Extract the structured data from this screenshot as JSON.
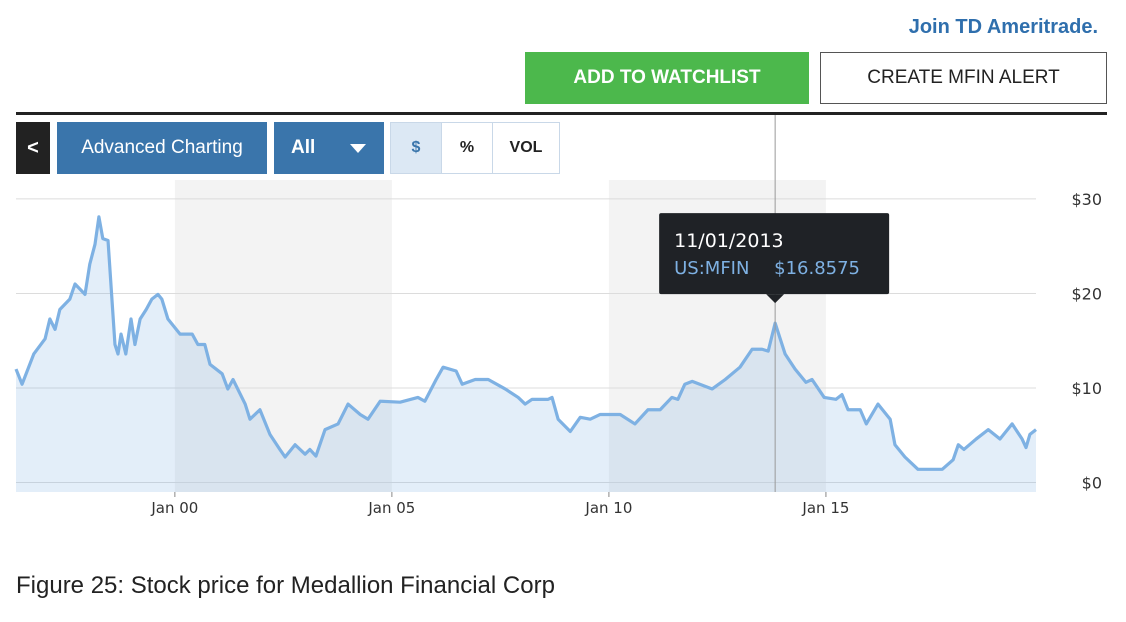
{
  "header": {
    "join_link": "Join TD Ameritrade.",
    "buttons": [
      "ADD TO WATCHLIST",
      "CREATE MFIN ALERT"
    ]
  },
  "toolbar": {
    "back": "<",
    "advanced": "Advanced Charting",
    "range": "All",
    "modes": [
      "$",
      "%",
      "VOL"
    ]
  },
  "chart_data": {
    "type": "line",
    "x": [
      1996.34,
      1996.48,
      1996.75,
      1997.01,
      1997.12,
      1997.24,
      1997.35,
      1997.58,
      1997.7,
      1997.93,
      1998.04,
      1998.16,
      1998.25,
      1998.34,
      1998.46,
      1998.55,
      1998.62,
      1998.69,
      1998.76,
      1998.87,
      1998.99,
      1999.08,
      1999.2,
      1999.34,
      1999.47,
      1999.61,
      1999.7,
      1999.84,
      2000.12,
      2000.4,
      2000.53,
      2000.69,
      2000.81,
      2001.09,
      2001.22,
      2001.34,
      2001.62,
      2001.73,
      2001.96,
      2002.19,
      2002.42,
      2002.54,
      2002.77,
      2003.0,
      2003.11,
      2003.25,
      2003.46,
      2003.76,
      2003.99,
      2004.27,
      2004.45,
      2004.73,
      2005.19,
      2005.6,
      2005.76,
      2006.02,
      2006.18,
      2006.48,
      2006.62,
      2006.92,
      2007.22,
      2007.61,
      2007.91,
      2008.07,
      2008.23,
      2008.6,
      2008.69,
      2008.83,
      2009.11,
      2009.34,
      2009.57,
      2009.8,
      2010.26,
      2010.6,
      2010.9,
      2011.18,
      2011.45,
      2011.59,
      2011.75,
      2011.92,
      2012.38,
      2012.68,
      2013.02,
      2013.3,
      2013.53,
      2013.67,
      2013.83,
      2014.06,
      2014.29,
      2014.54,
      2014.68,
      2014.96,
      2015.23,
      2015.37,
      2015.51,
      2015.79,
      2015.93,
      2016.2,
      2016.48,
      2016.59,
      2016.82,
      2017.12,
      2017.4,
      2017.68,
      2017.93,
      2018.05,
      2018.18,
      2018.46,
      2018.74,
      2019.01,
      2019.29,
      2019.52,
      2019.61,
      2019.7,
      2019.84
    ],
    "series": [
      {
        "name": "US:MFIN",
        "color": "#7eb1e3",
        "values": [
          12.0,
          10.4,
          13.6,
          15.2,
          17.3,
          16.2,
          18.3,
          19.4,
          21.0,
          19.9,
          23.1,
          25.2,
          28.1,
          25.8,
          25.6,
          19.4,
          14.6,
          13.6,
          15.7,
          13.6,
          17.3,
          14.6,
          17.3,
          18.3,
          19.4,
          19.9,
          19.4,
          17.3,
          15.7,
          15.7,
          14.6,
          14.6,
          12.5,
          11.5,
          9.9,
          10.9,
          8.3,
          6.7,
          7.7,
          5.1,
          3.5,
          2.7,
          4.0,
          3.0,
          3.5,
          2.8,
          5.6,
          6.2,
          8.3,
          7.2,
          6.7,
          8.6,
          8.5,
          9.0,
          8.6,
          10.9,
          12.2,
          11.8,
          10.4,
          10.9,
          10.9,
          9.9,
          9.0,
          8.3,
          8.8,
          8.8,
          9.0,
          6.7,
          5.4,
          6.9,
          6.7,
          7.2,
          7.2,
          6.2,
          7.7,
          7.7,
          9.0,
          8.8,
          10.4,
          10.7,
          9.9,
          10.9,
          12.2,
          14.1,
          14.1,
          13.9,
          16.86,
          13.6,
          12.0,
          10.6,
          10.9,
          9.0,
          8.8,
          9.3,
          7.7,
          7.7,
          6.2,
          8.3,
          6.7,
          4.0,
          2.7,
          1.4,
          1.4,
          1.4,
          2.4,
          4.0,
          3.5,
          4.6,
          5.6,
          4.6,
          6.2,
          4.6,
          3.7,
          5.1,
          5.6
        ]
      }
    ],
    "xlim": [
      1996.34,
      2019.84
    ],
    "xticks": [
      {
        "value": 2000,
        "label": "Jan 00"
      },
      {
        "value": 2005,
        "label": "Jan 05"
      },
      {
        "value": 2010,
        "label": "Jan 10"
      },
      {
        "value": 2015,
        "label": "Jan 15"
      }
    ],
    "ylim": [
      -1,
      32
    ],
    "yticks": [
      {
        "value": 0,
        "label": "$0"
      },
      {
        "value": 10,
        "label": "$10"
      },
      {
        "value": 20,
        "label": "$20"
      },
      {
        "value": 30,
        "label": "$30"
      }
    ],
    "grid": true,
    "tooltip": {
      "date": "11/01/2013",
      "x": 2013.83,
      "value": 16.8575,
      "value_label": "$16.8575"
    }
  },
  "caption": "Figure 25: Stock price for Medallion Financial Corp"
}
